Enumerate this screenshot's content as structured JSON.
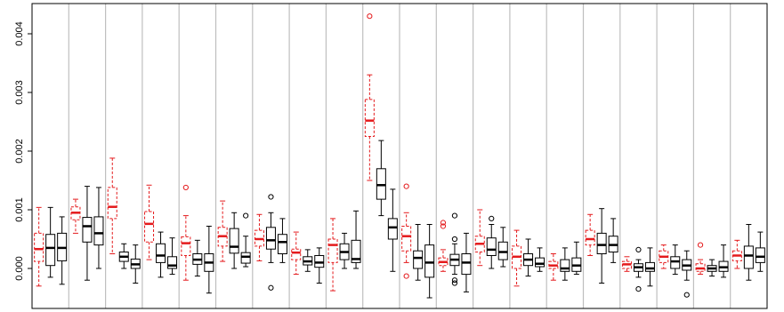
{
  "chart_data": {
    "type": "boxplot",
    "title": "",
    "xlabel": "",
    "ylabel": "",
    "ylim": [
      -0.0007,
      0.0045
    ],
    "yticks": [
      {
        "value": 0.0,
        "label": "0.000"
      },
      {
        "value": 0.001,
        "label": "0.001"
      },
      {
        "value": 0.002,
        "label": "0.002"
      },
      {
        "value": 0.003,
        "label": "0.003"
      },
      {
        "value": 0.004,
        "label": "0.004"
      }
    ],
    "grid": "vertical separators between groups",
    "legend": "none",
    "colors": {
      "red_series": "#e41a1c",
      "black_series": "#000000",
      "separator": "#bfbfbf"
    },
    "groups": [
      {
        "boxes": [
          {
            "series": "red",
            "whisker_low": -0.0003,
            "q1": 0.00012,
            "median": 0.00033,
            "q3": 0.0006,
            "whisker_high": 0.00104,
            "outliers": []
          },
          {
            "series": "black",
            "whisker_low": -0.00015,
            "q1": 5e-05,
            "median": 0.00035,
            "q3": 0.00058,
            "whisker_high": 0.00104,
            "outliers": []
          },
          {
            "series": "black",
            "whisker_low": -0.00027,
            "q1": 0.00013,
            "median": 0.00035,
            "q3": 0.0006,
            "whisker_high": 0.00088,
            "outliers": []
          }
        ]
      },
      {
        "boxes": [
          {
            "series": "red",
            "whisker_low": 0.0006,
            "q1": 0.00083,
            "median": 0.00095,
            "q3": 0.00105,
            "whisker_high": 0.00118,
            "outliers": []
          },
          {
            "series": "black",
            "whisker_low": -0.0002,
            "q1": 0.00045,
            "median": 0.00072,
            "q3": 0.00087,
            "whisker_high": 0.0014,
            "outliers": []
          },
          {
            "series": "black",
            "whisker_low": 0.0,
            "q1": 0.0004,
            "median": 0.0006,
            "q3": 0.00088,
            "whisker_high": 0.00138,
            "outliers": []
          }
        ]
      },
      {
        "boxes": [
          {
            "series": "red",
            "whisker_low": 0.00025,
            "q1": 0.00085,
            "median": 0.00105,
            "q3": 0.00138,
            "whisker_high": 0.00188,
            "outliers": []
          },
          {
            "series": "black",
            "whisker_low": 0.0,
            "q1": 0.00012,
            "median": 0.0002,
            "q3": 0.00028,
            "whisker_high": 0.00042,
            "outliers": []
          },
          {
            "series": "black",
            "whisker_low": -0.00025,
            "q1": 0.0,
            "median": 7e-05,
            "q3": 0.00016,
            "whisker_high": 0.0004,
            "outliers": []
          }
        ]
      },
      {
        "boxes": [
          {
            "series": "red",
            "whisker_low": 0.00015,
            "q1": 0.00045,
            "median": 0.00076,
            "q3": 0.00097,
            "whisker_high": 0.00142,
            "outliers": []
          },
          {
            "series": "black",
            "whisker_low": -0.00015,
            "q1": 0.0001,
            "median": 0.00022,
            "q3": 0.00042,
            "whisker_high": 0.00062,
            "outliers": []
          },
          {
            "series": "black",
            "whisker_low": -0.0001,
            "q1": 0.0,
            "median": 5e-05,
            "q3": 0.0002,
            "whisker_high": 0.00052,
            "outliers": []
          }
        ]
      },
      {
        "boxes": [
          {
            "series": "red",
            "whisker_low": -0.0002,
            "q1": 0.00022,
            "median": 0.00043,
            "q3": 0.00054,
            "whisker_high": 0.0009,
            "outliers": [
              0.00138
            ]
          },
          {
            "series": "black",
            "whisker_low": -0.00013,
            "q1": 7e-05,
            "median": 0.00015,
            "q3": 0.00025,
            "whisker_high": 0.00048,
            "outliers": []
          },
          {
            "series": "black",
            "whisker_low": -0.00042,
            "q1": -5e-05,
            "median": 0.0001,
            "q3": 0.00025,
            "whisker_high": 0.00072,
            "outliers": []
          }
        ]
      },
      {
        "boxes": [
          {
            "series": "red",
            "whisker_low": 0.00012,
            "q1": 0.00038,
            "median": 0.00055,
            "q3": 0.0007,
            "whisker_high": 0.00115,
            "outliers": []
          },
          {
            "series": "black",
            "whisker_low": 0.0,
            "q1": 0.00026,
            "median": 0.00037,
            "q3": 0.00068,
            "whisker_high": 0.00095,
            "outliers": []
          },
          {
            "series": "black",
            "whisker_low": 3e-05,
            "q1": 9e-05,
            "median": 0.0002,
            "q3": 0.00027,
            "whisker_high": 0.00055,
            "outliers": [
              0.0009
            ]
          }
        ]
      },
      {
        "boxes": [
          {
            "series": "red",
            "whisker_low": 0.00013,
            "q1": 0.00038,
            "median": 0.0005,
            "q3": 0.00065,
            "whisker_high": 0.00092,
            "outliers": []
          },
          {
            "series": "black",
            "whisker_low": 0.0001,
            "q1": 0.00033,
            "median": 0.00048,
            "q3": 0.0007,
            "whisker_high": 0.00095,
            "outliers": [
              0.00122,
              -0.00033
            ]
          },
          {
            "series": "black",
            "whisker_low": 0.0001,
            "q1": 0.00025,
            "median": 0.00045,
            "q3": 0.00058,
            "whisker_high": 0.00085,
            "outliers": []
          }
        ]
      },
      {
        "boxes": [
          {
            "series": "red",
            "whisker_low": -0.0001,
            "q1": 0.00015,
            "median": 0.00027,
            "q3": 0.00033,
            "whisker_high": 0.00062,
            "outliers": []
          },
          {
            "series": "black",
            "whisker_low": -5e-05,
            "q1": 6e-05,
            "median": 0.00012,
            "q3": 0.0002,
            "whisker_high": 0.00032,
            "outliers": []
          },
          {
            "series": "black",
            "whisker_low": -0.00025,
            "q1": 2e-05,
            "median": 0.0001,
            "q3": 0.00022,
            "whisker_high": 0.00035,
            "outliers": []
          }
        ]
      },
      {
        "boxes": [
          {
            "series": "red",
            "whisker_low": -0.00038,
            "q1": 0.0001,
            "median": 0.0004,
            "q3": 0.0005,
            "whisker_high": 0.00085,
            "outliers": []
          },
          {
            "series": "black",
            "whisker_low": 0.0,
            "q1": 0.00015,
            "median": 0.00028,
            "q3": 0.00042,
            "whisker_high": 0.0006,
            "outliers": []
          },
          {
            "series": "black",
            "whisker_low": 0.0,
            "q1": 0.0001,
            "median": 0.00016,
            "q3": 0.00048,
            "whisker_high": 0.00098,
            "outliers": []
          }
        ]
      },
      {
        "boxes": [
          {
            "series": "red",
            "whisker_low": 0.0015,
            "q1": 0.00225,
            "median": 0.00252,
            "q3": 0.00288,
            "whisker_high": 0.0033,
            "outliers": [
              0.0043
            ]
          },
          {
            "series": "black",
            "whisker_low": 0.0009,
            "q1": 0.00118,
            "median": 0.00142,
            "q3": 0.0017,
            "whisker_high": 0.00218,
            "outliers": []
          },
          {
            "series": "black",
            "whisker_low": -5e-05,
            "q1": 0.0005,
            "median": 0.0007,
            "q3": 0.00085,
            "whisker_high": 0.00135,
            "outliers": []
          }
        ]
      },
      {
        "boxes": [
          {
            "series": "red",
            "whisker_low": 0.0001,
            "q1": 0.0003,
            "median": 0.00055,
            "q3": 0.00072,
            "whisker_high": 0.00095,
            "outliers": [
              0.0014,
              -0.00013
            ]
          },
          {
            "series": "black",
            "whisker_low": -0.0002,
            "q1": 0.0,
            "median": 0.00018,
            "q3": 0.0003,
            "whisker_high": 0.00075,
            "outliers": []
          },
          {
            "series": "black",
            "whisker_low": -0.0005,
            "q1": -0.00015,
            "median": 0.0001,
            "q3": 0.0004,
            "whisker_high": 0.00075,
            "outliers": []
          }
        ]
      },
      {
        "boxes": [
          {
            "series": "red",
            "whisker_low": -5e-05,
            "q1": 5e-05,
            "median": 0.00011,
            "q3": 0.00018,
            "whisker_high": 0.00032,
            "outliers": [
              0.00078,
              0.00072
            ]
          },
          {
            "series": "black",
            "whisker_low": -0.0001,
            "q1": 5e-05,
            "median": 0.00015,
            "q3": 0.00024,
            "whisker_high": 0.00042,
            "outliers": [
              0.0009,
              0.0005,
              -0.0002,
              -0.00025
            ]
          },
          {
            "series": "black",
            "whisker_low": -0.0004,
            "q1": -0.0001,
            "median": 0.0001,
            "q3": 0.00025,
            "whisker_high": 0.0006,
            "outliers": []
          }
        ]
      },
      {
        "boxes": [
          {
            "series": "red",
            "whisker_low": 5e-05,
            "q1": 0.00028,
            "median": 0.00042,
            "q3": 0.00055,
            "whisker_high": 0.001,
            "outliers": []
          },
          {
            "series": "black",
            "whisker_low": 0.0,
            "q1": 0.00022,
            "median": 0.00032,
            "q3": 0.00052,
            "whisker_high": 0.00075,
            "outliers": [
              0.00085
            ]
          },
          {
            "series": "black",
            "whisker_low": 3e-05,
            "q1": 0.00015,
            "median": 0.00028,
            "q3": 0.00045,
            "whisker_high": 0.0007,
            "outliers": []
          }
        ]
      },
      {
        "boxes": [
          {
            "series": "red",
            "whisker_low": -0.0003,
            "q1": 0.0,
            "median": 0.0002,
            "q3": 0.00038,
            "whisker_high": 0.00065,
            "outliers": []
          },
          {
            "series": "black",
            "whisker_low": -0.00013,
            "q1": 5e-05,
            "median": 0.00015,
            "q3": 0.00025,
            "whisker_high": 0.0005,
            "outliers": []
          },
          {
            "series": "black",
            "whisker_low": -5e-05,
            "q1": 3e-05,
            "median": 8e-05,
            "q3": 0.00018,
            "whisker_high": 0.00035,
            "outliers": []
          }
        ]
      },
      {
        "boxes": [
          {
            "series": "red",
            "whisker_low": -0.0002,
            "q1": 0.0,
            "median": 5e-05,
            "q3": 0.00012,
            "whisker_high": 0.00025,
            "outliers": []
          },
          {
            "series": "black",
            "whisker_low": -0.0002,
            "q1": -5e-05,
            "median": 0.0,
            "q3": 0.00015,
            "whisker_high": 0.00035,
            "outliers": []
          },
          {
            "series": "black",
            "whisker_low": -0.0001,
            "q1": -5e-05,
            "median": 5e-05,
            "q3": 0.00018,
            "whisker_high": 0.00045,
            "outliers": []
          }
        ]
      },
      {
        "boxes": [
          {
            "series": "red",
            "whisker_low": 0.00022,
            "q1": 0.0004,
            "median": 0.0005,
            "q3": 0.00065,
            "whisker_high": 0.00092,
            "outliers": []
          },
          {
            "series": "black",
            "whisker_low": -0.00025,
            "q1": 0.00025,
            "median": 0.0004,
            "q3": 0.0006,
            "whisker_high": 0.00102,
            "outliers": []
          },
          {
            "series": "black",
            "whisker_low": 0.0001,
            "q1": 0.00028,
            "median": 0.0004,
            "q3": 0.00055,
            "whisker_high": 0.00085,
            "outliers": []
          }
        ]
      },
      {
        "boxes": [
          {
            "series": "red",
            "whisker_low": -5e-05,
            "q1": 0.0,
            "median": 7e-05,
            "q3": 0.00012,
            "whisker_high": 0.0002,
            "outliers": []
          },
          {
            "series": "black",
            "whisker_low": -0.00015,
            "q1": -5e-05,
            "median": 2e-05,
            "q3": 8e-05,
            "whisker_high": 0.00015,
            "outliers": [
              0.00032,
              -0.00035
            ]
          },
          {
            "series": "black",
            "whisker_low": -0.0003,
            "q1": -5e-05,
            "median": 0.0,
            "q3": 0.0001,
            "whisker_high": 0.00035,
            "outliers": []
          }
        ]
      },
      {
        "boxes": [
          {
            "series": "red",
            "whisker_low": 0.0,
            "q1": 0.0001,
            "median": 0.0002,
            "q3": 0.0003,
            "whisker_high": 0.0004,
            "outliers": []
          },
          {
            "series": "black",
            "whisker_low": -0.0001,
            "q1": 0.0,
            "median": 0.00012,
            "q3": 0.0002,
            "whisker_high": 0.0004,
            "outliers": []
          },
          {
            "series": "black",
            "whisker_low": -0.0002,
            "q1": -3e-05,
            "median": 5e-05,
            "q3": 0.00015,
            "whisker_high": 0.0003,
            "outliers": [
              -0.00045
            ]
          }
        ]
      },
      {
        "boxes": [
          {
            "series": "red",
            "whisker_low": -0.0001,
            "q1": -5e-05,
            "median": 0.0,
            "q3": 8e-05,
            "whisker_high": 0.00015,
            "outliers": [
              0.0004
            ]
          },
          {
            "series": "black",
            "whisker_low": -0.00013,
            "q1": -5e-05,
            "median": 0.0,
            "q3": 5e-05,
            "whisker_high": 0.00015,
            "outliers": []
          },
          {
            "series": "black",
            "whisker_low": -0.00015,
            "q1": -5e-05,
            "median": 2e-05,
            "q3": 0.00012,
            "whisker_high": 0.0004,
            "outliers": []
          }
        ]
      },
      {
        "boxes": [
          {
            "series": "red",
            "whisker_low": 0.0,
            "q1": 0.00013,
            "median": 0.00022,
            "q3": 0.0003,
            "whisker_high": 0.00048,
            "outliers": []
          },
          {
            "series": "black",
            "whisker_low": -0.0002,
            "q1": 0.0,
            "median": 0.00022,
            "q3": 0.00038,
            "whisker_high": 0.00075,
            "outliers": []
          },
          {
            "series": "black",
            "whisker_low": -5e-05,
            "q1": 0.0001,
            "median": 0.0002,
            "q3": 0.00035,
            "whisker_high": 0.00062,
            "outliers": []
          }
        ]
      }
    ]
  }
}
